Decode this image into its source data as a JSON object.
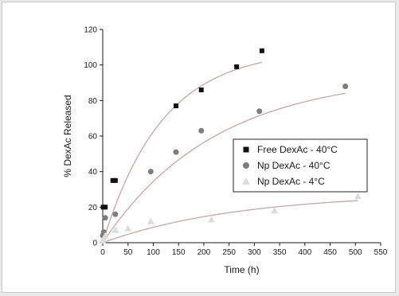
{
  "chart_data": {
    "type": "scatter",
    "title": "",
    "xlabel": "Time (h)",
    "ylabel": "% DexAc Released",
    "xlim": [
      0,
      550
    ],
    "ylim": [
      0,
      120
    ],
    "x_ticks": [
      0,
      50,
      100,
      150,
      200,
      250,
      300,
      350,
      400,
      450,
      500,
      550
    ],
    "y_ticks": [
      0,
      20,
      40,
      60,
      80,
      100,
      120
    ],
    "grid": false,
    "legend_position": "middle-right",
    "series": [
      {
        "name": "Free DexAc - 40°C",
        "marker": "square",
        "color": "#111111",
        "fit_color": "#c2a8a8",
        "points": [
          [
            1,
            20
          ],
          [
            5,
            20
          ],
          [
            20,
            35
          ],
          [
            25,
            35
          ],
          [
            145,
            77
          ],
          [
            195,
            86
          ],
          [
            265,
            99
          ],
          [
            315,
            108
          ]
        ],
        "fit": {
          "plateau": 109,
          "k": 0.0085,
          "x_start": 1,
          "x_end": 315
        }
      },
      {
        "name": "Np DexAc - 40°C",
        "marker": "circle",
        "color": "#7d7d7d",
        "fit_color": "#c2a8a8",
        "points": [
          [
            0,
            4
          ],
          [
            2,
            6
          ],
          [
            5,
            14
          ],
          [
            25,
            16
          ],
          [
            95,
            40
          ],
          [
            145,
            51
          ],
          [
            195,
            63
          ],
          [
            310,
            74
          ],
          [
            480,
            88
          ]
        ],
        "fit": {
          "plateau": 95,
          "k": 0.0045,
          "x_start": 0,
          "x_end": 480
        }
      },
      {
        "name": "Np DexAc - 4°C",
        "marker": "triangle",
        "color": "#dcdcdc",
        "fit_color": "#c2a8a8",
        "points": [
          [
            0,
            1
          ],
          [
            2,
            2
          ],
          [
            5,
            4
          ],
          [
            25,
            7
          ],
          [
            50,
            8
          ],
          [
            95,
            12
          ],
          [
            215,
            13
          ],
          [
            340,
            18
          ],
          [
            505,
            26
          ]
        ],
        "fit": {
          "plateau": 28,
          "k": 0.0037,
          "x_start": 0,
          "x_end": 505
        }
      }
    ]
  }
}
